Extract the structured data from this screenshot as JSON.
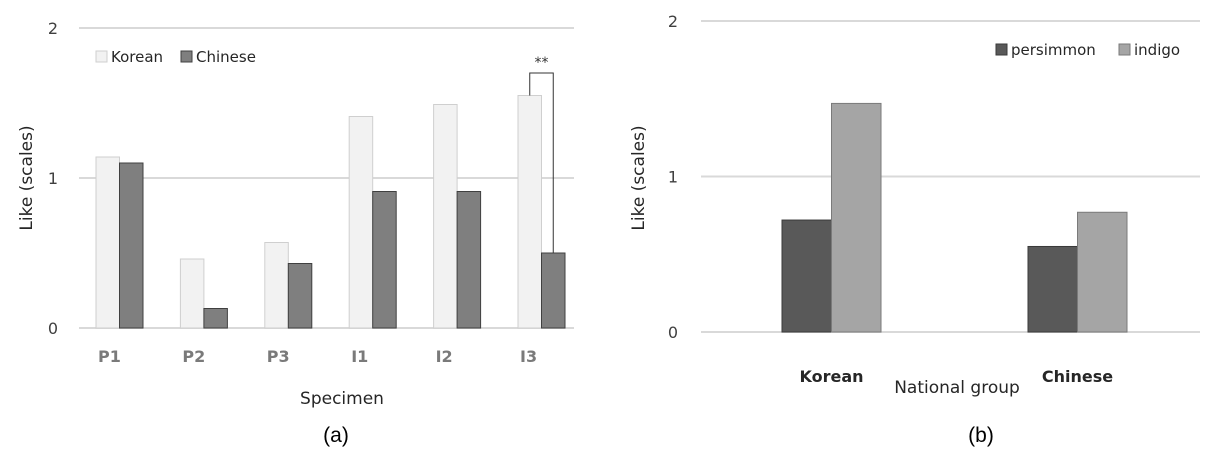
{
  "chart_data": [
    {
      "id": "a",
      "type": "bar",
      "caption": "(a)",
      "title": "",
      "xlabel": "Specimen",
      "ylabel": "Like (scales)",
      "ylim": [
        0,
        2
      ],
      "yticks": [
        "0",
        "1",
        "2"
      ],
      "grid": true,
      "legend_position": "top-left",
      "categories": [
        "P1",
        "P2",
        "P3",
        "I1",
        "I2",
        "I3"
      ],
      "series": [
        {
          "name": "Korean",
          "color": "#f2f2f2",
          "border": "#cfcfcf",
          "values": [
            1.14,
            0.46,
            0.57,
            1.41,
            1.49,
            1.55
          ]
        },
        {
          "name": "Chinese",
          "color": "#7f7f7f",
          "border": "#404040",
          "values": [
            1.1,
            0.13,
            0.43,
            0.91,
            0.91,
            0.5
          ]
        }
      ],
      "annotations": [
        {
          "category": "I3",
          "text": "**",
          "type": "significance-bracket"
        }
      ]
    },
    {
      "id": "b",
      "type": "bar",
      "caption": "(b)",
      "title": "",
      "xlabel": "National group",
      "ylabel": "Like (scales)",
      "ylim": [
        0,
        2
      ],
      "yticks": [
        "0",
        "1",
        "2"
      ],
      "grid": true,
      "legend_position": "top-right",
      "categories": [
        "Korean",
        "Chinese"
      ],
      "series": [
        {
          "name": "persimmon",
          "color": "#595959",
          "border": "#3a3a3a",
          "values": [
            0.72,
            0.55
          ]
        },
        {
          "name": "indigo",
          "color": "#a5a5a5",
          "border": "#7a7a7a",
          "values": [
            1.47,
            0.77
          ]
        }
      ]
    }
  ]
}
